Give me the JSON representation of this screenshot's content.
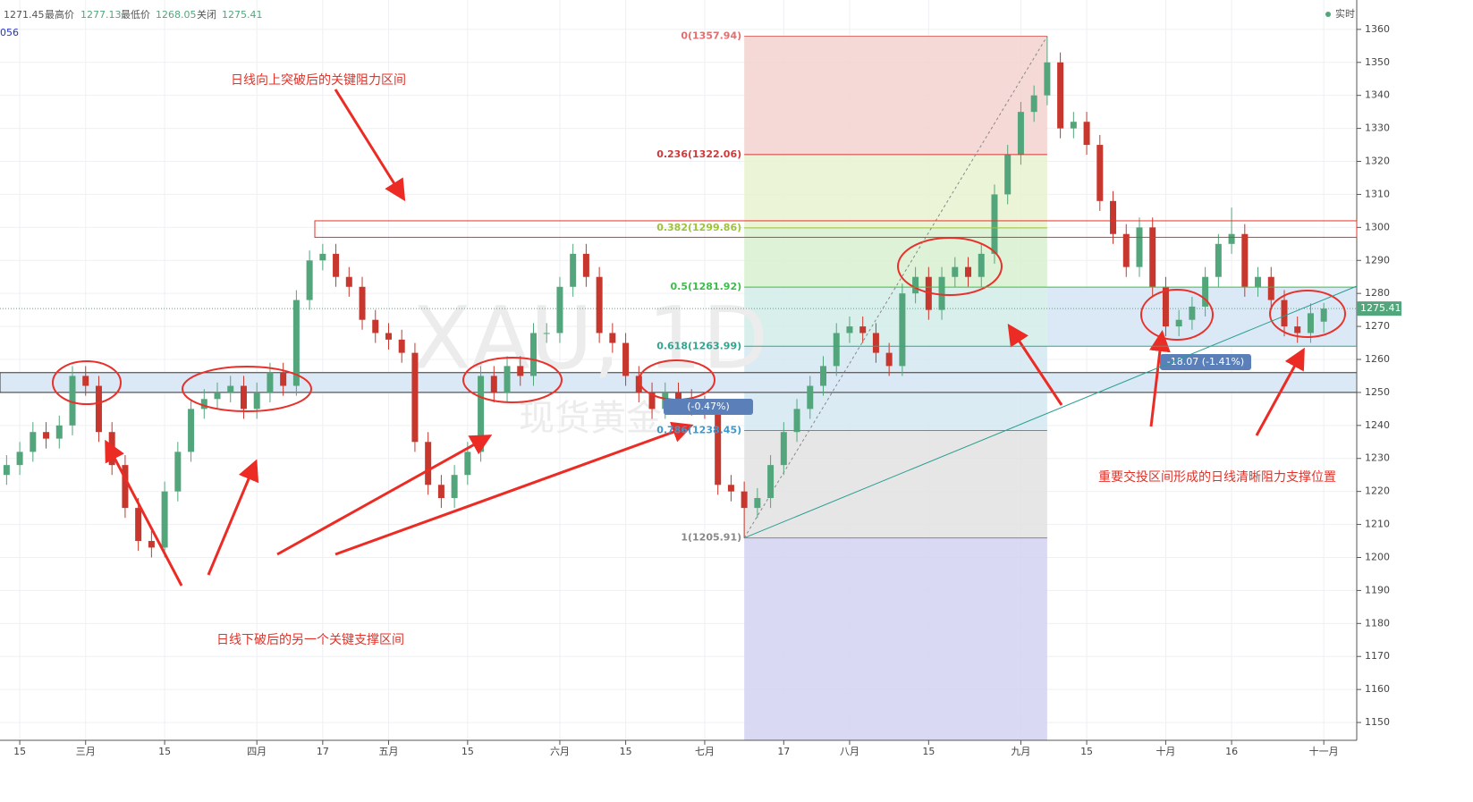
{
  "header": {
    "open": "1271.45",
    "high_label": "最高价",
    "high": "1277.13",
    "low_label": "最低价",
    "low": "1268.05",
    "close_label": "关闭",
    "close": "1275.41",
    "left_tag": "056",
    "live": "实时"
  },
  "chart_data": {
    "type": "candlestick",
    "watermark": "XAU, 1D",
    "watermark_sub": "现货黄金",
    "xlim": [
      -0.5,
      102.5
    ],
    "ylim": [
      1144.6,
      1368.9
    ],
    "xticks": [
      {
        "value": 1,
        "label": "15"
      },
      {
        "value": 6,
        "label": "三月"
      },
      {
        "value": 12,
        "label": "15"
      },
      {
        "value": 19,
        "label": "四月"
      },
      {
        "value": 24,
        "label": "17"
      },
      {
        "value": 29,
        "label": "五月"
      },
      {
        "value": 35,
        "label": "15"
      },
      {
        "value": 42,
        "label": "六月"
      },
      {
        "value": 47,
        "label": "15"
      },
      {
        "value": 53,
        "label": "七月"
      },
      {
        "value": 59,
        "label": "17"
      },
      {
        "value": 64,
        "label": "八月"
      },
      {
        "value": 70,
        "label": "15"
      },
      {
        "value": 77,
        "label": "九月"
      },
      {
        "value": 82,
        "label": "15"
      },
      {
        "value": 88,
        "label": "十月"
      },
      {
        "value": 93,
        "label": "16"
      },
      {
        "value": 100,
        "label": "十一月"
      }
    ],
    "yticks": [
      1150,
      1160,
      1170,
      1180,
      1190,
      1200,
      1210,
      1220,
      1230,
      1240,
      1250,
      1260,
      1270,
      1280,
      1290,
      1300,
      1310,
      1320,
      1330,
      1340,
      1350,
      1360
    ],
    "grid": true,
    "up_color": "#53a67c",
    "down_color": "#c8372d",
    "open": [
      1225,
      1228,
      1232,
      1238,
      1236,
      1240,
      1255,
      1252,
      1238,
      1228,
      1215,
      1205,
      1203,
      1220,
      1232,
      1245,
      1248,
      1250,
      1252,
      1245,
      1250,
      1256,
      1252,
      1278,
      1290,
      1292,
      1285,
      1282,
      1272,
      1268,
      1266,
      1262,
      1235,
      1222,
      1218,
      1225,
      1232,
      1255,
      1250,
      1258,
      1255,
      1268,
      1268,
      1282,
      1292,
      1285,
      1268,
      1265,
      1255,
      1250,
      1245,
      1250,
      1248,
      1246,
      1245,
      1222,
      1220,
      1215,
      1218,
      1228,
      1238,
      1245,
      1252,
      1258,
      1268,
      1270,
      1268,
      1262,
      1258,
      1280,
      1285,
      1275,
      1285,
      1288,
      1285,
      1292,
      1310,
      1322,
      1335,
      1340,
      1350,
      1330,
      1332,
      1325,
      1308,
      1298,
      1288,
      1300,
      1282,
      1270,
      1272,
      1276,
      1285,
      1295,
      1298,
      1282,
      1285,
      1278,
      1270,
      1268,
      1271.45
    ],
    "high": [
      1231,
      1235,
      1241,
      1241,
      1243,
      1258,
      1258,
      1255,
      1241,
      1231,
      1218,
      1208,
      1223,
      1235,
      1248,
      1251,
      1253,
      1255,
      1255,
      1253,
      1259,
      1259,
      1281,
      1293,
      1295,
      1295,
      1288,
      1285,
      1275,
      1271,
      1269,
      1265,
      1238,
      1225,
      1228,
      1235,
      1258,
      1258,
      1261,
      1261,
      1271,
      1271,
      1285,
      1295,
      1295,
      1288,
      1271,
      1268,
      1258,
      1253,
      1253,
      1253,
      1251,
      1249,
      1248,
      1225,
      1223,
      1221,
      1231,
      1241,
      1248,
      1255,
      1261,
      1271,
      1273,
      1273,
      1271,
      1265,
      1283,
      1288,
      1288,
      1288,
      1291,
      1291,
      1295,
      1313,
      1325,
      1338,
      1343,
      1357.94,
      1353,
      1335,
      1335,
      1328,
      1311,
      1301,
      1303,
      1303,
      1285,
      1275,
      1279,
      1288,
      1298,
      1306,
      1301,
      1288,
      1288,
      1281,
      1273,
      1277,
      1277.13
    ],
    "low": [
      1222,
      1225,
      1229,
      1233,
      1233,
      1237,
      1249,
      1235,
      1225,
      1212,
      1202,
      1200,
      1200,
      1217,
      1229,
      1242,
      1245,
      1247,
      1242,
      1242,
      1247,
      1249,
      1249,
      1275,
      1287,
      1282,
      1279,
      1269,
      1265,
      1263,
      1259,
      1232,
      1219,
      1215,
      1215,
      1222,
      1229,
      1247,
      1247,
      1252,
      1252,
      1265,
      1265,
      1279,
      1282,
      1265,
      1262,
      1252,
      1247,
      1242,
      1242,
      1245,
      1243,
      1242,
      1219,
      1217,
      1205.91,
      1212,
      1215,
      1225,
      1235,
      1242,
      1249,
      1255,
      1265,
      1265,
      1259,
      1255,
      1255,
      1277,
      1272,
      1272,
      1282,
      1282,
      1282,
      1289,
      1307,
      1319,
      1332,
      1337,
      1327,
      1327,
      1322,
      1305,
      1295,
      1285,
      1285,
      1279,
      1267,
      1267,
      1269,
      1273,
      1282,
      1292,
      1279,
      1279,
      1275,
      1267,
      1265,
      1265,
      1268.05
    ],
    "close": [
      1228,
      1232,
      1238,
      1236,
      1240,
      1255,
      1252,
      1238,
      1228,
      1215,
      1205,
      1203,
      1220,
      1232,
      1245,
      1248,
      1250,
      1252,
      1245,
      1250,
      1256,
      1252,
      1278,
      1290,
      1292,
      1285,
      1282,
      1272,
      1268,
      1266,
      1262,
      1235,
      1222,
      1218,
      1225,
      1232,
      1255,
      1250,
      1258,
      1255,
      1268,
      1268,
      1282,
      1292,
      1285,
      1268,
      1265,
      1255,
      1250,
      1245,
      1250,
      1248,
      1246,
      1245,
      1222,
      1220,
      1215,
      1218,
      1228,
      1238,
      1245,
      1252,
      1258,
      1268,
      1270,
      1268,
      1262,
      1258,
      1280,
      1285,
      1275,
      1285,
      1288,
      1285,
      1292,
      1310,
      1322,
      1335,
      1340,
      1350,
      1330,
      1332,
      1325,
      1308,
      1298,
      1288,
      1300,
      1282,
      1270,
      1272,
      1276,
      1285,
      1295,
      1298,
      1282,
      1285,
      1278,
      1270,
      1268,
      1274,
      1275.41
    ],
    "last_price": {
      "value": 1275.41,
      "label": "1275.41"
    },
    "fib": {
      "x": [
        56,
        79
      ],
      "levels": [
        {
          "value": 1357.94,
          "label": "0(1357.94)",
          "color": "#e07070",
          "fill": "#f2d2d0"
        },
        {
          "value": 1322.06,
          "label": "0.236(1322.06)",
          "color": "#d0393a",
          "fill": "#e8f2d0"
        },
        {
          "value": 1299.86,
          "label": "0.382(1299.86)",
          "color": "#9cc33a",
          "fill": "#d8f0d0"
        },
        {
          "value": 1281.92,
          "label": "0.5(1281.92)",
          "color": "#3cbc4a",
          "fill": "#d2ece8"
        },
        {
          "value": 1263.99,
          "label": "0.618(1263.99)",
          "color": "#2aa890",
          "fill": "#d5e8f2"
        },
        {
          "value": 1238.45,
          "label": "0.786(1238.45)",
          "color": "#3a9ad0",
          "fill": "#e2e2e2"
        },
        {
          "value": 1205.91,
          "label": "1(1205.91)",
          "color": "#888888",
          "fill": "#d4d2f2"
        }
      ]
    },
    "zones": [
      {
        "from": 1297,
        "to": 1302
      },
      {
        "from": 1250,
        "to": 1256
      }
    ],
    "measures": [
      "-18.07 (-1.41%)",
      "(-0.47%)"
    ],
    "annotations": [
      "日线向上突破后的关键阻力区间",
      "日线下破后的另一个关键支撑区间",
      "重要交投区间形成的日线清晰阻力支撑位置"
    ]
  }
}
